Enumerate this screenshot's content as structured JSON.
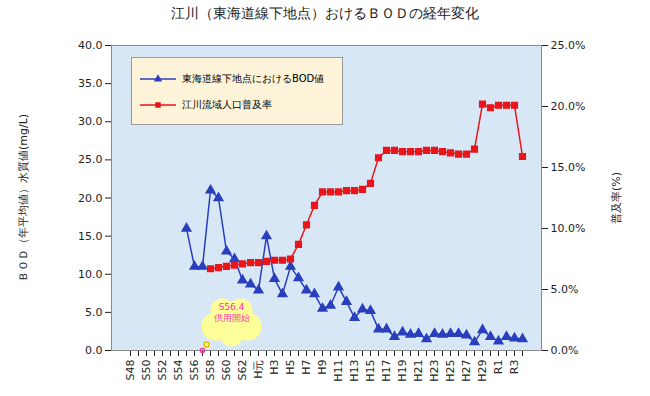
{
  "chart_data": {
    "type": "line",
    "title": "江川（東海道線下地点）おけるＢＯＤの経年変化",
    "ylabel": "ＢＯＤ（年平均値）水質値(mg/L)",
    "y2label": "普及率(%)",
    "categories": [
      "S48",
      null,
      "S50",
      null,
      "S52",
      null,
      "S54",
      null,
      "S56",
      null,
      "S58",
      null,
      "S60",
      null,
      "S62",
      null,
      "H元",
      null,
      "H3",
      null,
      "H5",
      null,
      "H7",
      null,
      "H9",
      null,
      "H11",
      null,
      "H13",
      null,
      "H15",
      null,
      "H17",
      null,
      "H19",
      null,
      "H21",
      null,
      "H23",
      null,
      "H25",
      null,
      "H27",
      null,
      "H29",
      null,
      "R1",
      null,
      "R3",
      null
    ],
    "series": [
      {
        "name": "東海道線下地点におけるBOD値",
        "color": "#2a3fbd",
        "marker": "triangle",
        "axis": "y",
        "values": [
          null,
          null,
          null,
          null,
          null,
          null,
          null,
          16,
          11,
          11,
          21,
          20,
          13,
          12,
          9.2,
          8.7,
          7.9,
          15,
          9.4,
          7.4,
          11,
          9.5,
          7.9,
          7.4,
          5.5,
          5.9,
          8.3,
          6.4,
          4.3,
          5.4,
          5.2,
          2.8,
          2.8,
          1.8,
          2.4,
          2.1,
          2.2,
          1.5,
          2.2,
          2.1,
          2.2,
          2.2,
          2.0,
          1.1,
          2.7,
          1.8,
          1.2,
          1.8,
          1.6,
          1.5
        ]
      },
      {
        "name": "江川流域人口普及率",
        "color": "#e8161a",
        "marker": "square",
        "axis": "y2",
        "values": [
          null,
          null,
          null,
          null,
          null,
          null,
          null,
          null,
          null,
          null,
          6.7,
          6.8,
          6.9,
          7.0,
          7.1,
          7.2,
          7.2,
          7.3,
          7.4,
          7.4,
          7.5,
          8.7,
          10.3,
          11.9,
          13.0,
          13.0,
          13.0,
          13.1,
          13.1,
          13.2,
          13.7,
          15.8,
          16.4,
          16.4,
          16.3,
          16.3,
          16.3,
          16.4,
          16.4,
          16.3,
          16.2,
          16.1,
          16.1,
          16.5,
          20.2,
          19.9,
          20.1,
          20.1,
          20.1,
          15.9
        ]
      }
    ],
    "ylim": [
      0,
      40
    ],
    "yticks": [
      {
        "value": 0,
        "label": "0.0"
      },
      {
        "value": 5,
        "label": "5.0"
      },
      {
        "value": 10,
        "label": "10.0"
      },
      {
        "value": 15,
        "label": "15.0"
      },
      {
        "value": 20,
        "label": "20.0"
      },
      {
        "value": 25,
        "label": "25.0"
      },
      {
        "value": 30,
        "label": "30.0"
      },
      {
        "value": 35,
        "label": "35.0"
      },
      {
        "value": 40,
        "label": "40.0"
      }
    ],
    "y2lim": [
      0,
      25
    ],
    "y2ticks": [
      {
        "value": 0,
        "label": "0.0%"
      },
      {
        "value": 5,
        "label": "5.0%"
      },
      {
        "value": 10,
        "label": "10.0%"
      },
      {
        "value": 15,
        "label": "15.0%"
      },
      {
        "value": 20,
        "label": "20.0%"
      },
      {
        "value": 25,
        "label": "25.0%"
      }
    ],
    "grid": false,
    "legend": "top-left",
    "annotation": {
      "text": [
        "S56.4",
        "供用開始"
      ],
      "x": 9
    }
  }
}
